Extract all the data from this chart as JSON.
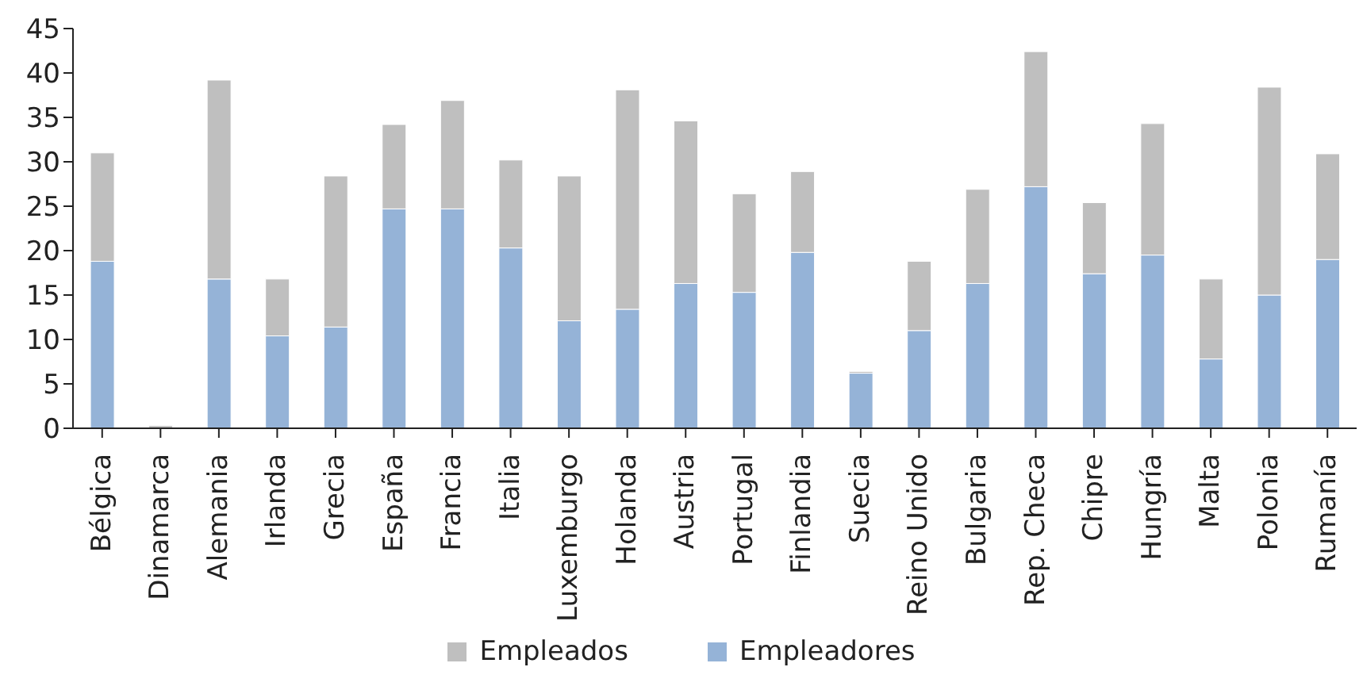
{
  "chart_data": {
    "type": "bar",
    "stacked": true,
    "categories": [
      "Bélgica",
      "Dinamarca",
      "Alemania",
      "Irlanda",
      "Grecia",
      "España",
      "Francia",
      "Italia",
      "Luxemburgo",
      "Holanda",
      "Austria",
      "Portugal",
      "Finlandia",
      "Suecia",
      "Reino Unido",
      "Bulgaria",
      "Rep. Checa",
      "Chipre",
      "Hungría",
      "Malta",
      "Polonia",
      "Rumanía"
    ],
    "series": [
      {
        "name": "Empleadores",
        "color": "#95b3d7",
        "values": [
          18.8,
          0,
          16.8,
          10.4,
          11.4,
          24.7,
          24.7,
          20.3,
          12.1,
          13.4,
          16.3,
          15.3,
          19.8,
          6.2,
          11.0,
          16.3,
          27.2,
          17.4,
          19.5,
          7.8,
          15.0,
          19.0
        ]
      },
      {
        "name": "Empleados",
        "color": "#bfbfbf",
        "values": [
          12.2,
          0.3,
          22.4,
          6.4,
          17.0,
          9.5,
          12.2,
          9.9,
          16.3,
          24.7,
          18.3,
          11.1,
          9.1,
          0.2,
          7.8,
          10.6,
          15.2,
          8.0,
          14.8,
          9.0,
          23.4,
          11.9
        ]
      }
    ],
    "ylim": [
      0,
      45
    ],
    "yticks": [
      0,
      5,
      10,
      15,
      20,
      25,
      30,
      35,
      40,
      45
    ],
    "grid": false,
    "legend": "bottom"
  }
}
